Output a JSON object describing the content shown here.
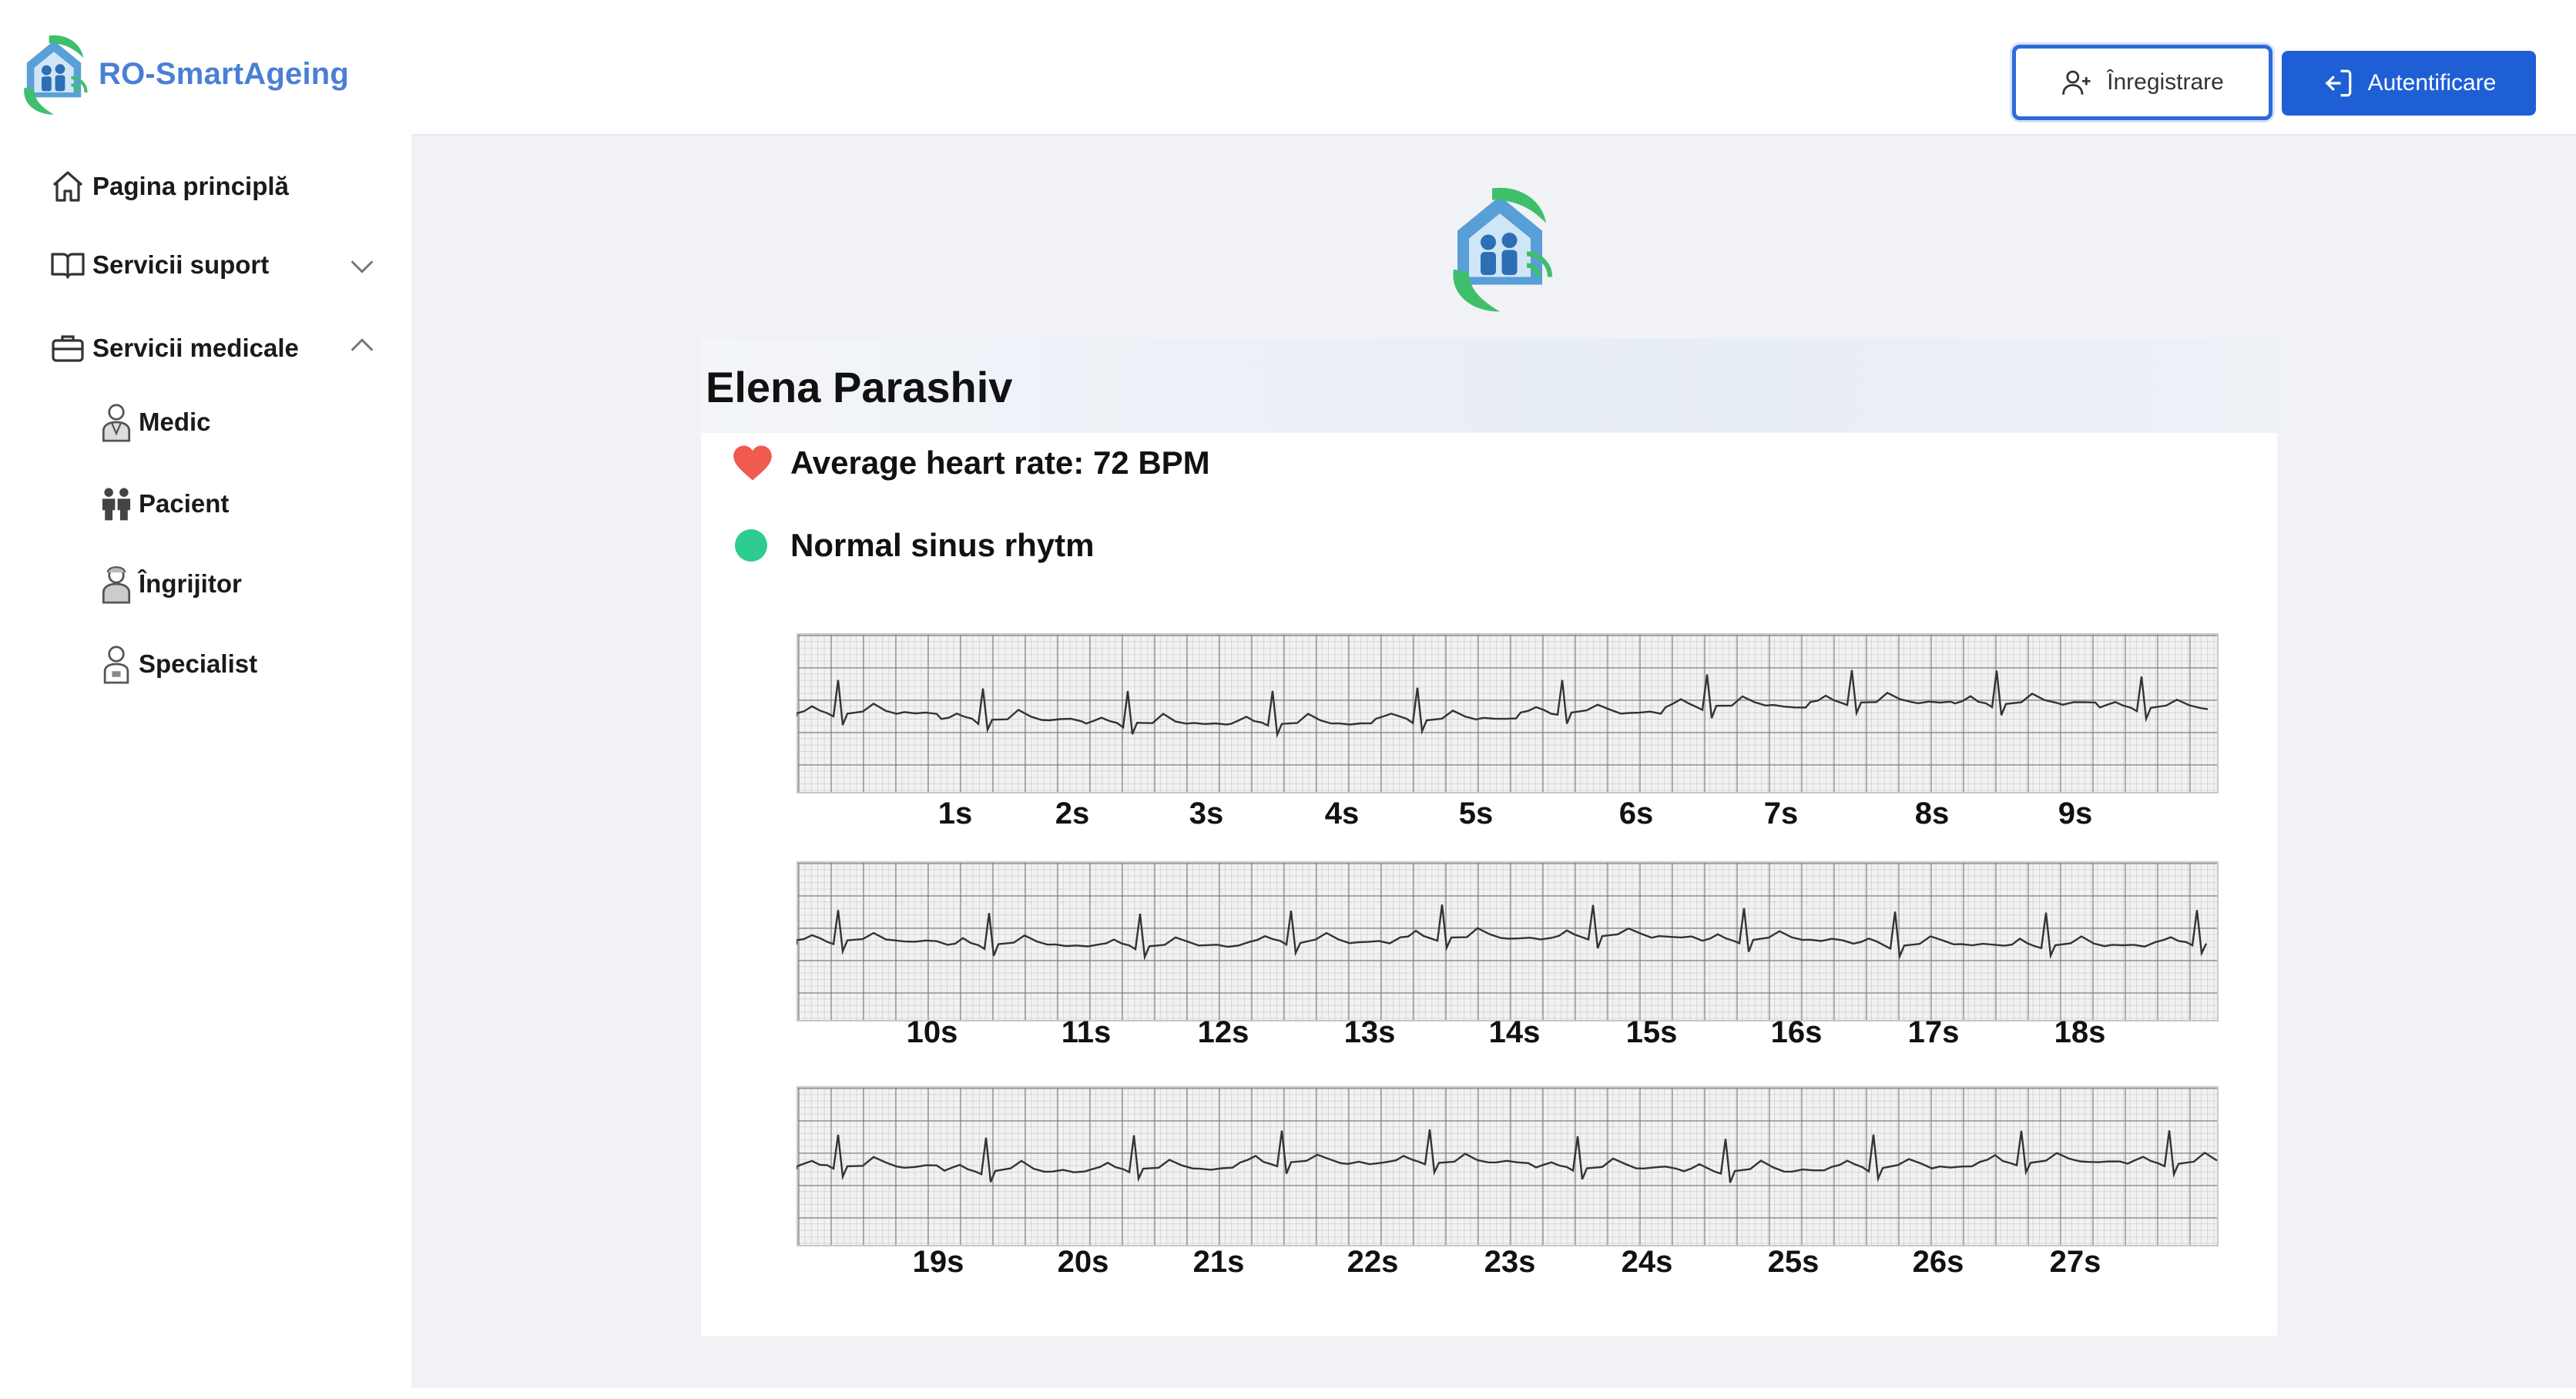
{
  "brand": {
    "name": "RO-SmartAgeing"
  },
  "sidebar": {
    "items": [
      {
        "label": "Pagina principlă",
        "icon": "home-icon"
      },
      {
        "label": "Servicii suport",
        "icon": "book-icon",
        "expanded": false
      },
      {
        "label": "Servicii medicale",
        "icon": "briefcase-icon",
        "expanded": true
      }
    ],
    "medical_subitems": [
      {
        "label": "Medic",
        "icon": "doctor-icon"
      },
      {
        "label": "Pacient",
        "icon": "patient-icon"
      },
      {
        "label": "Îngrijitor",
        "icon": "caregiver-icon"
      },
      {
        "label": "Specialist",
        "icon": "specialist-icon"
      }
    ]
  },
  "header": {
    "register_label": "Înregistrare",
    "login_label": "Autentificare"
  },
  "patient": {
    "name": "Elena Parashiv",
    "heart_rate_text": "Average heart rate: 72 BPM",
    "rhythm_text": "Normal sinus rhytm"
  },
  "ecg": {
    "strips": [
      {
        "labels": [
          "1s",
          "2s",
          "3s",
          "4s",
          "5s",
          "6s",
          "7s",
          "8s",
          "9s"
        ]
      },
      {
        "labels": [
          "10s",
          "11s",
          "12s",
          "13s",
          "14s",
          "15s",
          "16s",
          "17s",
          "18s"
        ]
      },
      {
        "labels": [
          "19s",
          "20s",
          "21s",
          "22s",
          "23s",
          "24s",
          "25s",
          "26s",
          "27s"
        ]
      }
    ]
  },
  "colors": {
    "brand_blue": "#4a7fd4",
    "primary_button": "#1f5fd6",
    "heart_red": "#f05a4f",
    "status_green": "#2ecc8f"
  }
}
